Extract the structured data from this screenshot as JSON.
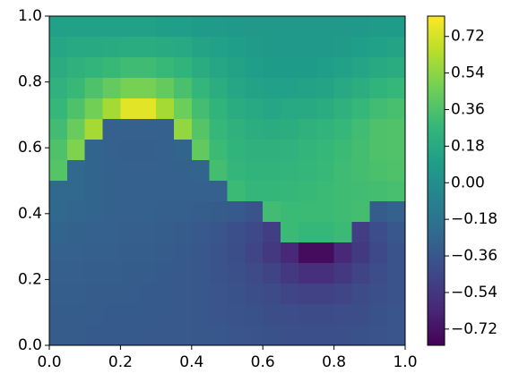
{
  "chart_data": {
    "type": "heatmap",
    "xlim": [
      0,
      1
    ],
    "ylim": [
      0,
      1
    ],
    "zlim": [
      -0.8,
      0.82
    ],
    "xticks": [
      {
        "value": 0,
        "label": "0.0"
      },
      {
        "value": 0.2,
        "label": "0.2"
      },
      {
        "value": 0.4,
        "label": "0.4"
      },
      {
        "value": 0.6,
        "label": "0.6"
      },
      {
        "value": 0.8,
        "label": "0.8"
      },
      {
        "value": 1,
        "label": "1.0"
      }
    ],
    "yticks": [
      {
        "value": 0,
        "label": "0.0"
      },
      {
        "value": 0.2,
        "label": "0.2"
      },
      {
        "value": 0.4,
        "label": "0.4"
      },
      {
        "value": 0.6,
        "label": "0.6"
      },
      {
        "value": 0.8,
        "label": "0.8"
      },
      {
        "value": 1,
        "label": "1.0"
      }
    ],
    "zticks": [
      {
        "value": -0.72,
        "label": "−0.72"
      },
      {
        "value": -0.54,
        "label": "−0.54"
      },
      {
        "value": -0.36,
        "label": "−0.36"
      },
      {
        "value": -0.18,
        "label": "−0.18"
      },
      {
        "value": 0,
        "label": "0.00"
      },
      {
        "value": 0.18,
        "label": "0.18"
      },
      {
        "value": 0.36,
        "label": "0.36"
      },
      {
        "value": 0.54,
        "label": "0.54"
      },
      {
        "value": 0.72,
        "label": "0.72"
      }
    ],
    "colormap": [
      "#440154",
      "#482878",
      "#3e4989",
      "#31688e",
      "#26828e",
      "#1f9e89",
      "#35b779",
      "#6ece58",
      "#b5de2b",
      "#fde725"
    ],
    "z": [
      [
        0.12,
        0.12,
        0.12,
        0.12,
        0.12,
        0.12,
        0.11,
        0.1,
        0.09,
        0.08,
        0.07,
        0.06,
        0.06,
        0.06,
        0.06,
        0.06,
        0.06,
        0.07,
        0.08,
        0.09
      ],
      [
        0.16,
        0.17,
        0.18,
        0.19,
        0.2,
        0.2,
        0.19,
        0.17,
        0.14,
        0.12,
        0.1,
        0.08,
        0.07,
        0.07,
        0.07,
        0.07,
        0.08,
        0.1,
        0.12,
        0.14
      ],
      [
        0.2,
        0.23,
        0.26,
        0.29,
        0.31,
        0.31,
        0.29,
        0.25,
        0.2,
        0.16,
        0.13,
        0.1,
        0.09,
        0.09,
        0.09,
        0.1,
        0.12,
        0.15,
        0.18,
        0.2
      ],
      [
        0.24,
        0.29,
        0.36,
        0.43,
        0.48,
        0.48,
        0.43,
        0.35,
        0.27,
        0.21,
        0.16,
        0.13,
        0.12,
        0.12,
        0.13,
        0.14,
        0.17,
        0.21,
        0.25,
        0.28
      ],
      [
        0.28,
        0.36,
        0.47,
        0.6,
        0.75,
        0.75,
        0.6,
        0.45,
        0.33,
        0.25,
        0.2,
        0.17,
        0.16,
        0.17,
        0.18,
        0.2,
        0.23,
        0.28,
        0.32,
        0.34
      ],
      [
        0.32,
        0.44,
        0.6,
        -0.3,
        -0.3,
        -0.3,
        -0.3,
        0.55,
        0.38,
        0.28,
        0.23,
        0.21,
        0.2,
        0.21,
        0.23,
        0.25,
        0.28,
        0.32,
        0.36,
        0.37
      ],
      [
        0.36,
        0.5,
        -0.28,
        -0.3,
        -0.31,
        -0.31,
        -0.3,
        -0.28,
        0.42,
        0.3,
        0.25,
        0.23,
        0.23,
        0.24,
        0.26,
        0.28,
        0.3,
        0.33,
        0.36,
        0.37
      ],
      [
        0.38,
        -0.26,
        -0.28,
        -0.29,
        -0.3,
        -0.3,
        -0.3,
        -0.29,
        -0.28,
        0.33,
        0.27,
        0.25,
        0.25,
        0.26,
        0.27,
        0.29,
        0.31,
        0.33,
        0.35,
        0.36
      ],
      [
        -0.25,
        -0.26,
        -0.28,
        -0.29,
        -0.3,
        -0.3,
        -0.3,
        -0.3,
        -0.3,
        -0.3,
        0.3,
        0.27,
        0.27,
        0.28,
        0.29,
        0.3,
        0.31,
        0.32,
        0.33,
        0.34
      ],
      [
        -0.26,
        -0.27,
        -0.28,
        -0.29,
        -0.3,
        -0.3,
        -0.31,
        -0.31,
        -0.32,
        -0.33,
        -0.35,
        -0.38,
        0.32,
        0.3,
        0.3,
        0.3,
        0.31,
        0.33,
        -0.33,
        -0.3
      ],
      [
        -0.28,
        -0.29,
        -0.3,
        -0.3,
        -0.31,
        -0.31,
        -0.32,
        -0.33,
        -0.35,
        -0.37,
        -0.4,
        -0.44,
        -0.5,
        0.3,
        0.28,
        0.28,
        0.3,
        -0.5,
        -0.42,
        -0.36
      ],
      [
        -0.3,
        -0.3,
        -0.31,
        -0.31,
        -0.32,
        -0.32,
        -0.33,
        -0.34,
        -0.36,
        -0.38,
        -0.41,
        -0.46,
        -0.53,
        -0.62,
        -0.75,
        -0.75,
        -0.62,
        -0.52,
        -0.44,
        -0.38
      ],
      [
        -0.31,
        -0.31,
        -0.32,
        -0.32,
        -0.33,
        -0.33,
        -0.34,
        -0.35,
        -0.36,
        -0.38,
        -0.4,
        -0.43,
        -0.47,
        -0.53,
        -0.58,
        -0.58,
        -0.53,
        -0.47,
        -0.42,
        -0.38
      ],
      [
        -0.32,
        -0.32,
        -0.33,
        -0.33,
        -0.33,
        -0.34,
        -0.34,
        -0.35,
        -0.36,
        -0.37,
        -0.39,
        -0.41,
        -0.43,
        -0.46,
        -0.48,
        -0.48,
        -0.46,
        -0.43,
        -0.4,
        -0.38
      ],
      [
        -0.33,
        -0.33,
        -0.33,
        -0.34,
        -0.34,
        -0.34,
        -0.35,
        -0.35,
        -0.36,
        -0.37,
        -0.38,
        -0.39,
        -0.41,
        -0.42,
        -0.43,
        -0.43,
        -0.42,
        -0.41,
        -0.39,
        -0.37
      ],
      [
        -0.33,
        -0.33,
        -0.34,
        -0.34,
        -0.34,
        -0.35,
        -0.35,
        -0.35,
        -0.36,
        -0.36,
        -0.37,
        -0.38,
        -0.39,
        -0.4,
        -0.4,
        -0.4,
        -0.4,
        -0.39,
        -0.38,
        -0.37
      ]
    ]
  }
}
